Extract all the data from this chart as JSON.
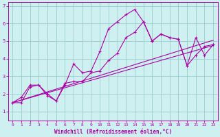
{
  "xlabel": "Windchill (Refroidissement éolien,°C)",
  "background_color": "#cef0f0",
  "line_color": "#aa00aa",
  "grid_color": "#99cccc",
  "xlim": [
    -0.5,
    23.5
  ],
  "ylim": [
    0.5,
    7.2
  ],
  "xticks": [
    0,
    1,
    2,
    3,
    4,
    5,
    6,
    7,
    8,
    9,
    10,
    11,
    12,
    13,
    14,
    15,
    16,
    17,
    18,
    19,
    20,
    21,
    22,
    23
  ],
  "yticks": [
    1,
    2,
    3,
    4,
    5,
    6,
    7
  ],
  "series1_x": [
    0,
    1,
    2,
    3,
    4,
    5,
    6,
    7,
    8,
    9,
    10,
    11,
    12,
    13,
    14,
    15,
    16,
    17,
    18,
    19,
    20,
    21,
    22,
    23
  ],
  "series1_y": [
    1.5,
    1.8,
    2.5,
    2.5,
    2.0,
    1.6,
    2.5,
    3.7,
    3.2,
    3.3,
    4.4,
    5.7,
    6.1,
    6.5,
    6.8,
    6.1,
    5.0,
    5.4,
    5.2,
    5.1,
    3.6,
    4.2,
    4.7,
    4.8
  ],
  "series2_x": [
    0,
    1,
    2,
    3,
    4,
    5,
    6,
    7,
    8,
    9,
    10,
    11,
    12,
    13,
    14,
    15,
    16,
    17,
    18,
    19,
    20,
    21,
    22,
    23
  ],
  "series2_y": [
    1.5,
    1.5,
    2.4,
    2.5,
    1.9,
    1.6,
    2.6,
    2.7,
    2.7,
    3.2,
    3.3,
    3.9,
    4.3,
    5.2,
    5.5,
    6.1,
    5.0,
    5.4,
    5.2,
    5.1,
    3.6,
    5.2,
    4.2,
    4.8
  ],
  "trend1_x": [
    0,
    23
  ],
  "trend1_y": [
    1.5,
    5.05
  ],
  "trend2_x": [
    0,
    23
  ],
  "trend2_y": [
    1.5,
    4.75
  ]
}
